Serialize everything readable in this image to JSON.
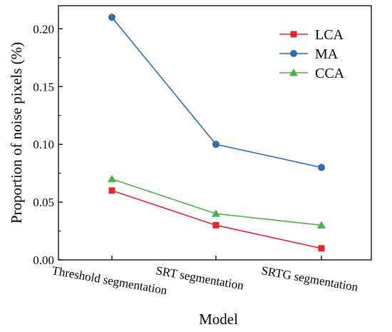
{
  "chart_data": {
    "type": "line",
    "categories": [
      "Threshold segmentation",
      "SRT segmentation",
      "SRTG segmentation"
    ],
    "series": [
      {
        "name": "LCA",
        "values": [
          0.06,
          0.03,
          0.01
        ],
        "color": "#e8262b",
        "marker": "square"
      },
      {
        "name": "MA",
        "values": [
          0.21,
          0.1,
          0.08
        ],
        "color": "#2f6fae",
        "marker": "circle"
      },
      {
        "name": "CCA",
        "values": [
          0.07,
          0.04,
          0.03
        ],
        "color": "#4ab24a",
        "marker": "triangle"
      }
    ],
    "title": "",
    "xlabel": "Model",
    "ylabel": "Proportion of noise pixels (%)",
    "ylim": [
      0,
      0.22
    ],
    "yticks": [
      0.0,
      0.05,
      0.1,
      0.15,
      0.2
    ],
    "ytick_labels": [
      "0.00",
      "0.05",
      "0.10",
      "0.15",
      "0.20"
    ],
    "grid": false,
    "legend_position": "top-right"
  }
}
